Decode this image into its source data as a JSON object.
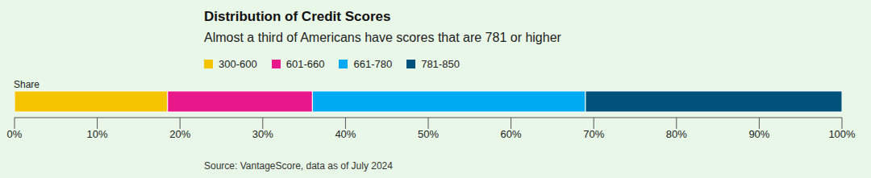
{
  "chart_data": {
    "type": "bar",
    "title": "Distribution of Credit Scores",
    "subtitle": "Almost a third of Americans have scores that are 781 or higher",
    "source": "Source: VantageScore, data as of July 2024",
    "orientation": "horizontal",
    "stacked": true,
    "legend": "top",
    "grid": false,
    "categories": [
      "Share"
    ],
    "series": [
      {
        "name": "300-600",
        "color": "#f5c400",
        "values": [
          18.5
        ]
      },
      {
        "name": "601-660",
        "color": "#e8178a",
        "values": [
          17.5
        ]
      },
      {
        "name": "661-780",
        "color": "#00aaf2",
        "values": [
          33
        ]
      },
      {
        "name": "781-850",
        "color": "#00527c",
        "values": [
          31
        ]
      }
    ],
    "xlim": [
      0,
      100
    ],
    "xticks": [
      {
        "value": 0,
        "label": "0%"
      },
      {
        "value": 10,
        "label": "10%"
      },
      {
        "value": 20,
        "label": "20%"
      },
      {
        "value": 30,
        "label": "30%"
      },
      {
        "value": 40,
        "label": "40%"
      },
      {
        "value": 50,
        "label": "50%"
      },
      {
        "value": 60,
        "label": "60%"
      },
      {
        "value": 70,
        "label": "70%"
      },
      {
        "value": 80,
        "label": "80%"
      },
      {
        "value": 90,
        "label": "90%"
      },
      {
        "value": 100,
        "label": "100%"
      }
    ]
  }
}
